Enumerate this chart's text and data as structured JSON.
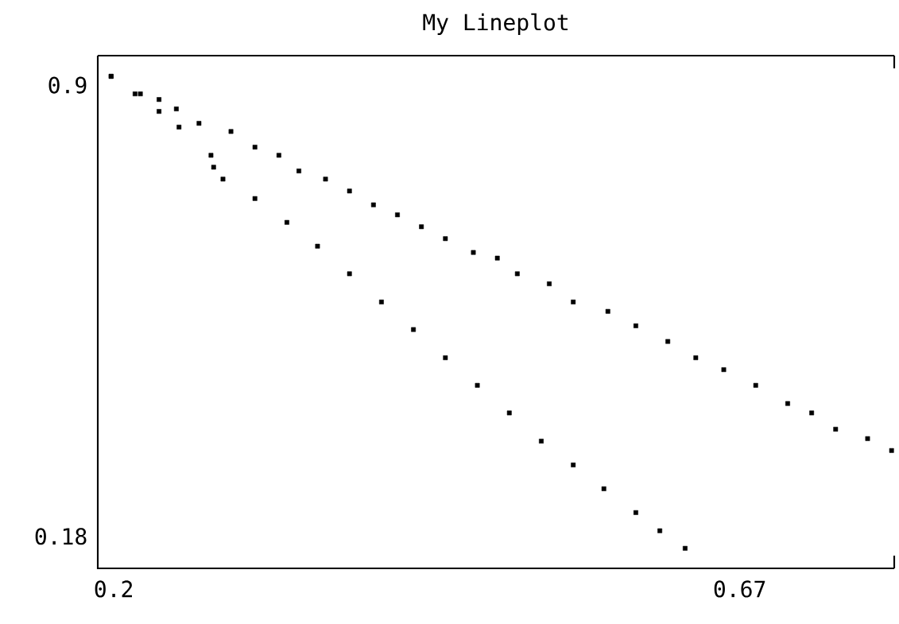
{
  "chart_data": {
    "type": "scatter",
    "title": "My Lineplot",
    "marker": "square",
    "xlim": [
      0.188,
      0.786
    ],
    "ylim": [
      0.129,
      0.947
    ],
    "xticks": [
      0.2,
      0.67
    ],
    "yticks": [
      0.9,
      0.18
    ],
    "series": [
      {
        "color": "#000000",
        "x": [
          0.198,
          0.22,
          0.234,
          0.247,
          0.264,
          0.288,
          0.306,
          0.324,
          0.339,
          0.359,
          0.377,
          0.395,
          0.413,
          0.431,
          0.449,
          0.47,
          0.488,
          0.503,
          0.527,
          0.545,
          0.571,
          0.592,
          0.616,
          0.637,
          0.658,
          0.682,
          0.706,
          0.724,
          0.742,
          0.766,
          0.784
        ],
        "values": [
          0.914,
          0.886,
          0.877,
          0.862,
          0.839,
          0.826,
          0.801,
          0.788,
          0.763,
          0.75,
          0.731,
          0.709,
          0.693,
          0.674,
          0.655,
          0.633,
          0.624,
          0.599,
          0.583,
          0.554,
          0.539,
          0.516,
          0.491,
          0.465,
          0.446,
          0.421,
          0.392,
          0.377,
          0.351,
          0.336,
          0.317
        ]
      },
      {
        "color": "#000000",
        "x": [
          0.198,
          0.216,
          0.234,
          0.249,
          0.273,
          0.275,
          0.282,
          0.306,
          0.33,
          0.353,
          0.377,
          0.401,
          0.425,
          0.449,
          0.473,
          0.497,
          0.521,
          0.545,
          0.568,
          0.592,
          0.61,
          0.629
        ],
        "values": [
          0.914,
          0.886,
          0.858,
          0.833,
          0.788,
          0.769,
          0.75,
          0.719,
          0.681,
          0.643,
          0.599,
          0.554,
          0.51,
          0.465,
          0.421,
          0.377,
          0.332,
          0.294,
          0.256,
          0.218,
          0.189,
          0.161
        ]
      }
    ]
  }
}
